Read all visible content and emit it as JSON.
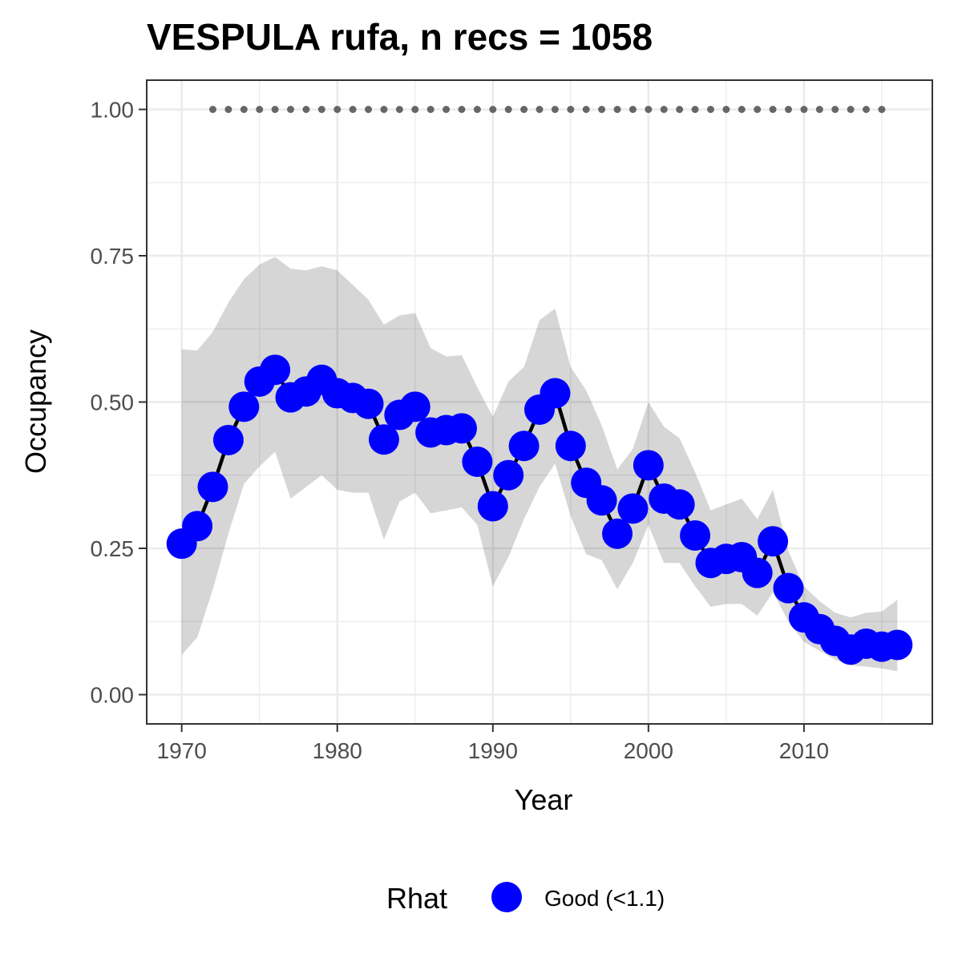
{
  "chart_data": {
    "type": "line",
    "title": "VESPULA rufa, n recs = 1058",
    "xlabel": "Year",
    "ylabel": "Occupancy",
    "xlim": [
      1967.75,
      2018.25
    ],
    "ylim": [
      -0.05,
      1.05
    ],
    "x_ticks": [
      1970,
      1980,
      1990,
      2000,
      2010
    ],
    "x_tick_labels": [
      "1970",
      "1980",
      "1990",
      "2000",
      "2010"
    ],
    "y_ticks": [
      0,
      0.25,
      0.5,
      0.75,
      1.0
    ],
    "y_tick_labels": [
      "0.00",
      "0.25",
      "0.50",
      "0.75",
      "1.00"
    ],
    "grid": true,
    "legend_position": "bottom",
    "legend": {
      "title": "Rhat",
      "entries": [
        {
          "label": "Good (<1.1)",
          "color": "#0000ff"
        }
      ]
    },
    "colors": {
      "points": "#0000ff",
      "line": "#000000",
      "ribbon": "#d3d3d3",
      "reference": "#666666"
    },
    "x": [
      1970,
      1971,
      1972,
      1973,
      1974,
      1975,
      1976,
      1977,
      1978,
      1979,
      1980,
      1981,
      1982,
      1983,
      1984,
      1985,
      1986,
      1987,
      1988,
      1989,
      1990,
      1991,
      1992,
      1993,
      1994,
      1995,
      1996,
      1997,
      1998,
      1999,
      2000,
      2001,
      2002,
      2003,
      2004,
      2005,
      2006,
      2007,
      2008,
      2009,
      2010,
      2011,
      2012,
      2013,
      2014,
      2015,
      2016
    ],
    "series": [
      {
        "values": [
          0.258,
          0.288,
          0.355,
          0.435,
          0.492,
          0.535,
          0.555,
          0.508,
          0.518,
          0.538,
          0.515,
          0.507,
          0.497,
          0.436,
          0.478,
          0.492,
          0.448,
          0.452,
          0.455,
          0.398,
          0.322,
          0.375,
          0.425,
          0.487,
          0.515,
          0.425,
          0.362,
          0.332,
          0.275,
          0.318,
          0.392,
          0.335,
          0.325,
          0.272,
          0.225,
          0.232,
          0.235,
          0.208,
          0.262,
          0.182,
          0.132,
          0.112,
          0.092,
          0.077,
          0.087,
          0.082,
          0.085
        ]
      }
    ],
    "ribbon": {
      "upper": [
        0.59,
        0.588,
        0.62,
        0.67,
        0.71,
        0.735,
        0.748,
        0.728,
        0.725,
        0.732,
        0.725,
        0.7,
        0.675,
        0.632,
        0.648,
        0.652,
        0.592,
        0.578,
        0.58,
        0.525,
        0.475,
        0.535,
        0.56,
        0.64,
        0.66,
        0.56,
        0.52,
        0.46,
        0.385,
        0.42,
        0.5,
        0.458,
        0.438,
        0.38,
        0.315,
        0.325,
        0.335,
        0.3,
        0.35,
        0.245,
        0.185,
        0.16,
        0.14,
        0.132,
        0.14,
        0.142,
        0.162
      ],
      "lower": [
        0.068,
        0.098,
        0.18,
        0.275,
        0.36,
        0.39,
        0.415,
        0.335,
        0.355,
        0.375,
        0.35,
        0.345,
        0.345,
        0.265,
        0.33,
        0.345,
        0.31,
        0.315,
        0.32,
        0.29,
        0.185,
        0.235,
        0.3,
        0.355,
        0.395,
        0.305,
        0.24,
        0.23,
        0.18,
        0.225,
        0.29,
        0.225,
        0.225,
        0.185,
        0.15,
        0.155,
        0.155,
        0.135,
        0.175,
        0.125,
        0.09,
        0.075,
        0.06,
        0.05,
        0.048,
        0.045,
        0.04
      ]
    },
    "reference_line": {
      "y": 1.0,
      "x_start": 1972,
      "x_end": 2015,
      "style": "dotted"
    }
  }
}
